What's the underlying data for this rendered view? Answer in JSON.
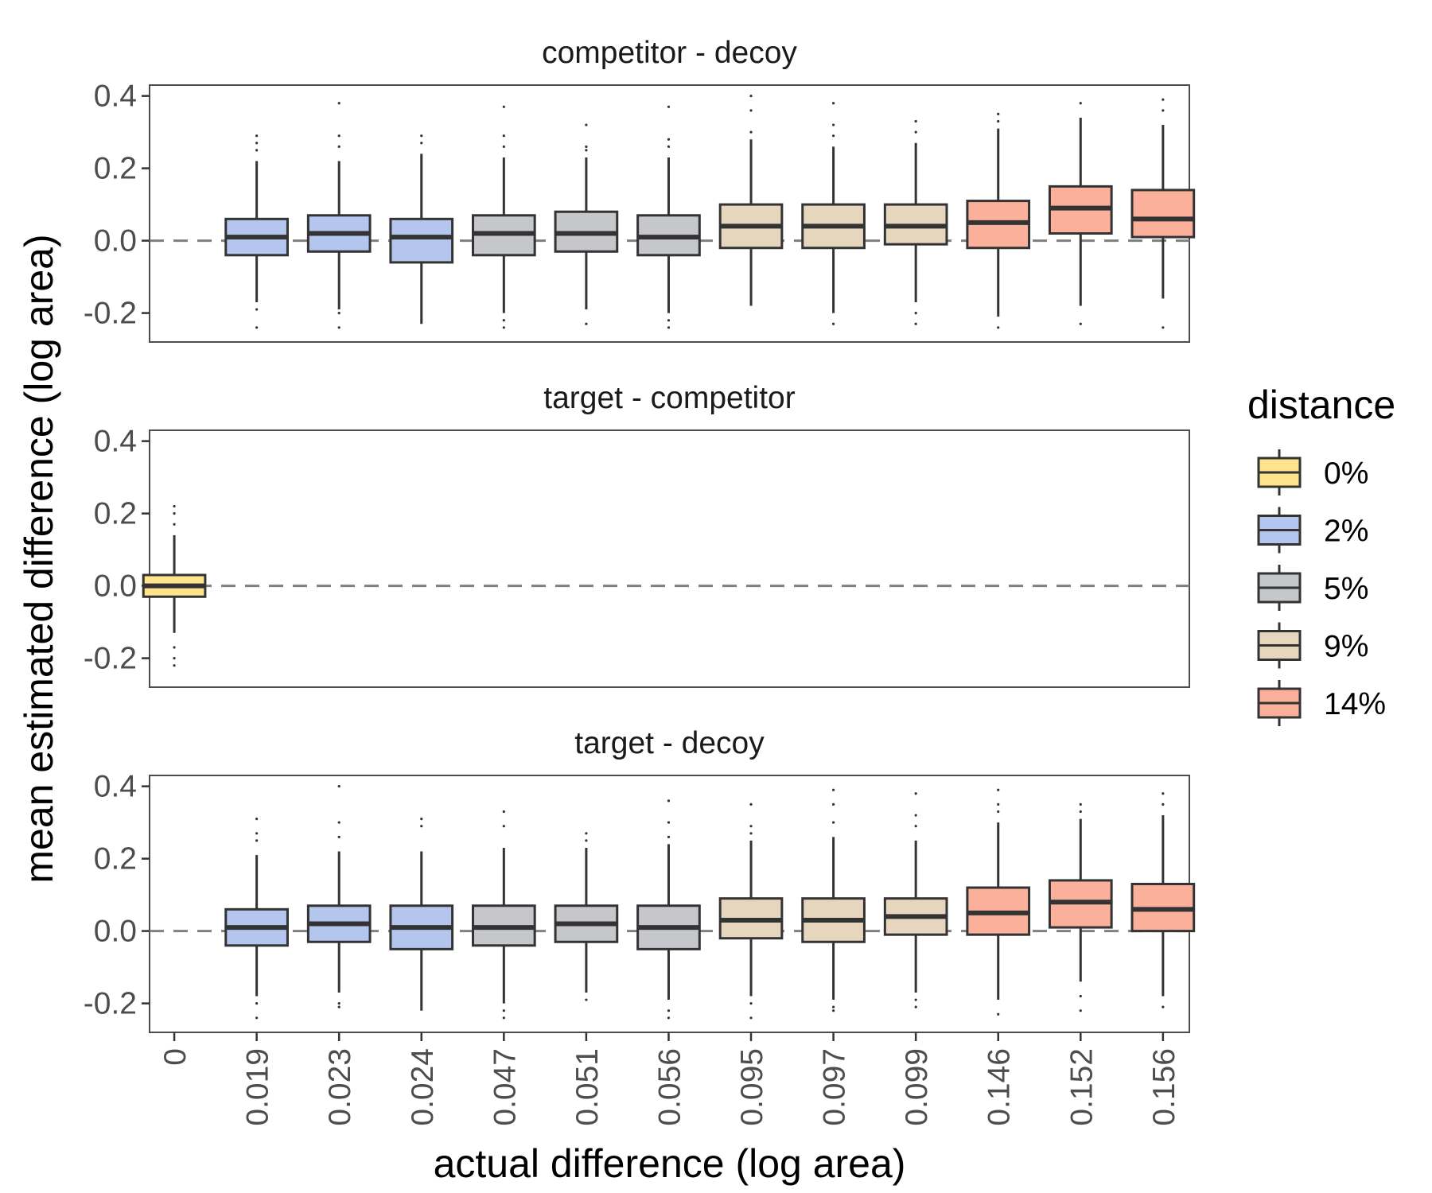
{
  "chart_data": {
    "type": "boxplot",
    "xlabel": "actual difference (log area)",
    "ylabel": "mean estimated difference (log area)",
    "categories": [
      "0",
      "0.019",
      "0.023",
      "0.024",
      "0.047",
      "0.051",
      "0.056",
      "0.095",
      "0.097",
      "0.099",
      "0.146",
      "0.152",
      "0.156"
    ],
    "yticks": [
      0.4,
      0.2,
      0.0,
      -0.2
    ],
    "ytick_labels": [
      "0.4",
      "0.2",
      "0.0",
      "-0.2"
    ],
    "ylim": [
      -0.28,
      0.43
    ],
    "reference_line": 0,
    "legend": {
      "title": "distance",
      "position": "right",
      "items": [
        {
          "label": "0%",
          "color": "#FFE38D"
        },
        {
          "label": "2%",
          "color": "#B4C6EE"
        },
        {
          "label": "5%",
          "color": "#C5C7CA"
        },
        {
          "label": "9%",
          "color": "#E6D6BE"
        },
        {
          "label": "14%",
          "color": "#FBB09B"
        }
      ]
    },
    "panels": [
      {
        "title": "competitor - decoy",
        "boxes": [
          {
            "x": "0.019",
            "distance": "2%",
            "whisker_low": -0.17,
            "q1": -0.04,
            "median": 0.01,
            "q3": 0.06,
            "whisker_high": 0.22,
            "outliers": [
              0.29,
              0.27,
              0.25,
              -0.19,
              -0.24
            ]
          },
          {
            "x": "0.023",
            "distance": "2%",
            "whisker_low": -0.19,
            "q1": -0.03,
            "median": 0.02,
            "q3": 0.07,
            "whisker_high": 0.22,
            "outliers": [
              0.38,
              0.29,
              0.26,
              -0.2,
              -0.24
            ]
          },
          {
            "x": "0.024",
            "distance": "2%",
            "whisker_low": -0.23,
            "q1": -0.06,
            "median": 0.01,
            "q3": 0.06,
            "whisker_high": 0.24,
            "outliers": [
              0.29,
              0.27
            ]
          },
          {
            "x": "0.047",
            "distance": "5%",
            "whisker_low": -0.2,
            "q1": -0.04,
            "median": 0.02,
            "q3": 0.07,
            "whisker_high": 0.23,
            "outliers": [
              0.37,
              0.29,
              0.26,
              -0.22,
              -0.24
            ]
          },
          {
            "x": "0.051",
            "distance": "5%",
            "whisker_low": -0.19,
            "q1": -0.03,
            "median": 0.02,
            "q3": 0.08,
            "whisker_high": 0.23,
            "outliers": [
              0.32,
              0.26,
              0.25,
              -0.23
            ]
          },
          {
            "x": "0.056",
            "distance": "5%",
            "whisker_low": -0.2,
            "q1": -0.04,
            "median": 0.01,
            "q3": 0.07,
            "whisker_high": 0.23,
            "outliers": [
              0.37,
              0.28,
              0.26,
              -0.22,
              -0.24
            ]
          },
          {
            "x": "0.095",
            "distance": "9%",
            "whisker_low": -0.18,
            "q1": -0.02,
            "median": 0.04,
            "q3": 0.1,
            "whisker_high": 0.28,
            "outliers": [
              0.4,
              0.36,
              0.3
            ]
          },
          {
            "x": "0.097",
            "distance": "9%",
            "whisker_low": -0.2,
            "q1": -0.02,
            "median": 0.04,
            "q3": 0.1,
            "whisker_high": 0.26,
            "outliers": [
              0.38,
              0.32,
              0.29,
              -0.23
            ]
          },
          {
            "x": "0.099",
            "distance": "9%",
            "whisker_low": -0.17,
            "q1": -0.01,
            "median": 0.04,
            "q3": 0.1,
            "whisker_high": 0.27,
            "outliers": [
              0.33,
              0.3,
              -0.2,
              -0.23
            ]
          },
          {
            "x": "0.146",
            "distance": "14%",
            "whisker_low": -0.21,
            "q1": -0.02,
            "median": 0.05,
            "q3": 0.11,
            "whisker_high": 0.31,
            "outliers": [
              0.35,
              0.33,
              -0.24
            ]
          },
          {
            "x": "0.152",
            "distance": "14%",
            "whisker_low": -0.18,
            "q1": 0.02,
            "median": 0.09,
            "q3": 0.15,
            "whisker_high": 0.34,
            "outliers": [
              0.38,
              -0.23
            ]
          },
          {
            "x": "0.156",
            "distance": "14%",
            "whisker_low": -0.16,
            "q1": 0.01,
            "median": 0.06,
            "q3": 0.14,
            "whisker_high": 0.32,
            "outliers": [
              0.39,
              0.36,
              -0.24
            ]
          }
        ]
      },
      {
        "title": "target - competitor",
        "boxes": [
          {
            "x": "0",
            "distance": "0%",
            "whisker_low": -0.13,
            "q1": -0.03,
            "median": 0.0,
            "q3": 0.03,
            "whisker_high": 0.14,
            "outliers": [
              0.22,
              0.2,
              0.17,
              -0.17,
              -0.2,
              -0.22
            ]
          }
        ]
      },
      {
        "title": "target - decoy",
        "boxes": [
          {
            "x": "0.019",
            "distance": "2%",
            "whisker_low": -0.18,
            "q1": -0.04,
            "median": 0.01,
            "q3": 0.06,
            "whisker_high": 0.21,
            "outliers": [
              0.31,
              0.27,
              0.25,
              -0.2,
              -0.24
            ]
          },
          {
            "x": "0.023",
            "distance": "2%",
            "whisker_low": -0.17,
            "q1": -0.03,
            "median": 0.02,
            "q3": 0.07,
            "whisker_high": 0.22,
            "outliers": [
              0.4,
              0.3,
              0.26,
              -0.2,
              -0.21
            ]
          },
          {
            "x": "0.024",
            "distance": "2%",
            "whisker_low": -0.22,
            "q1": -0.05,
            "median": 0.01,
            "q3": 0.07,
            "whisker_high": 0.22,
            "outliers": [
              0.31,
              0.29
            ]
          },
          {
            "x": "0.047",
            "distance": "5%",
            "whisker_low": -0.2,
            "q1": -0.04,
            "median": 0.01,
            "q3": 0.07,
            "whisker_high": 0.23,
            "outliers": [
              0.33,
              0.29,
              -0.22,
              -0.24
            ]
          },
          {
            "x": "0.051",
            "distance": "5%",
            "whisker_low": -0.17,
            "q1": -0.03,
            "median": 0.02,
            "q3": 0.07,
            "whisker_high": 0.23,
            "outliers": [
              0.27,
              0.25,
              -0.19
            ]
          },
          {
            "x": "0.056",
            "distance": "5%",
            "whisker_low": -0.19,
            "q1": -0.05,
            "median": 0.01,
            "q3": 0.07,
            "whisker_high": 0.24,
            "outliers": [
              0.36,
              0.3,
              0.26,
              -0.22,
              -0.24
            ]
          },
          {
            "x": "0.095",
            "distance": "9%",
            "whisker_low": -0.18,
            "q1": -0.02,
            "median": 0.03,
            "q3": 0.09,
            "whisker_high": 0.25,
            "outliers": [
              0.35,
              0.29,
              0.27,
              -0.2,
              -0.24
            ]
          },
          {
            "x": "0.097",
            "distance": "9%",
            "whisker_low": -0.19,
            "q1": -0.03,
            "median": 0.03,
            "q3": 0.09,
            "whisker_high": 0.26,
            "outliers": [
              0.39,
              0.35,
              0.3,
              -0.21,
              -0.22
            ]
          },
          {
            "x": "0.099",
            "distance": "9%",
            "whisker_low": -0.17,
            "q1": -0.01,
            "median": 0.04,
            "q3": 0.09,
            "whisker_high": 0.25,
            "outliers": [
              0.38,
              0.32,
              0.29,
              -0.19,
              -0.21
            ]
          },
          {
            "x": "0.146",
            "distance": "14%",
            "whisker_low": -0.19,
            "q1": -0.01,
            "median": 0.05,
            "q3": 0.12,
            "whisker_high": 0.3,
            "outliers": [
              0.39,
              0.35,
              0.33,
              -0.23
            ]
          },
          {
            "x": "0.152",
            "distance": "14%",
            "whisker_low": -0.14,
            "q1": 0.01,
            "median": 0.08,
            "q3": 0.14,
            "whisker_high": 0.31,
            "outliers": [
              0.35,
              0.33,
              -0.18,
              -0.22
            ]
          },
          {
            "x": "0.156",
            "distance": "14%",
            "whisker_low": -0.18,
            "q1": 0.0,
            "median": 0.06,
            "q3": 0.13,
            "whisker_high": 0.32,
            "outliers": [
              0.38,
              0.35,
              -0.21
            ]
          }
        ]
      }
    ]
  }
}
